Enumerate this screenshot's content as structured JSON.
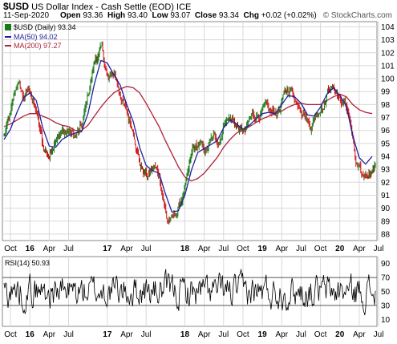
{
  "header": {
    "symbol": "$USD",
    "description": "US Dollar Index - Cash Settle (EOD)",
    "exchange": "ICE",
    "date": "11-Sep-2020",
    "open_label": "Open",
    "open": "93.36",
    "high_label": "High",
    "high": "93.40",
    "low_label": "Low",
    "low": "93.07",
    "close_label": "Close",
    "close": "93.34",
    "chg_label": "Chg",
    "chg": "+0.02 (+0.02%)",
    "copyright": "© StockCharts.com"
  },
  "legend": {
    "price": "$USD (Daily) 93.34",
    "ma50": "MA(50) 94.02",
    "ma200": "MA(200) 97.27",
    "rsi": "RSI(14) 50.93"
  },
  "colors": {
    "up": "#1a7a1a",
    "down": "#cc1111",
    "ma50": "#1f1f9e",
    "ma200": "#b0203a",
    "grid": "#d8d8d8",
    "rsi_line": "#000000",
    "rsi_bands": "#555555"
  },
  "chart_data": [
    {
      "type": "line",
      "title": "$USD (Daily)",
      "chart_style": "ohlc-bars",
      "grid": true,
      "y_axis_side": "right",
      "ylim": [
        87.5,
        104.4
      ],
      "yticks": [
        "88",
        "89",
        "90",
        "91",
        "92",
        "93",
        "94",
        "95",
        "96",
        "97",
        "98",
        "99",
        "100",
        "101",
        "102",
        "103",
        "104"
      ],
      "x_labels": [
        "Oct",
        "16",
        "Apr",
        "Jul",
        "17",
        "Apr",
        "Jul",
        "18",
        "Apr",
        "Jul",
        "Oct",
        "19",
        "Apr",
        "Jul",
        "Oct",
        "20",
        "Apr",
        "Jul"
      ],
      "x_label_dates": [
        "2015-10",
        "2016-01",
        "2016-04",
        "2016-07",
        "2017-01",
        "2017-04",
        "2017-07",
        "2018-01",
        "2018-04",
        "2018-07",
        "2018-10",
        "2019-01",
        "2019-04",
        "2019-07",
        "2019-10",
        "2020-01",
        "2020-04",
        "2020-07"
      ],
      "price_path_monthly": {
        "start": "2015-09",
        "values": [
          95.6,
          97.0,
          99.6,
          98.6,
          99.1,
          97.3,
          94.6,
          94.0,
          95.9,
          95.9,
          95.9,
          95.5,
          96.2,
          98.9,
          101.5,
          102.2,
          99.8,
          100.4,
          98.6,
          97.0,
          95.8,
          93.3,
          92.4,
          93.2,
          92.2,
          89.2,
          89.1,
          90.3,
          91.8,
          94.4,
          94.8,
          94.3,
          95.3,
          95.2,
          97.1,
          96.9,
          96.2,
          95.8,
          96.9,
          97.3,
          97.6,
          97.1,
          97.4,
          98.7,
          99.2,
          98.2,
          97.8,
          96.4,
          97.4,
          98.2,
          99.5,
          99.0,
          98.1,
          97.3,
          93.3,
          92.1,
          92.8,
          93.3
        ]
      },
      "series": [
        {
          "name": "MA(50)",
          "last": 94.02,
          "values": [
            95.3,
            96.1,
            97.4,
            98.5,
            98.9,
            98.3,
            96.2,
            94.8,
            94.7,
            95.3,
            95.6,
            95.8,
            95.9,
            97.3,
            99.6,
            101.4,
            101.2,
            100.3,
            99.5,
            98.0,
            96.7,
            94.7,
            93.3,
            92.9,
            92.7,
            91.1,
            89.7,
            89.8,
            91.0,
            92.9,
            94.3,
            94.6,
            94.9,
            95.2,
            96.2,
            96.8,
            96.5,
            96.1,
            96.4,
            96.9,
            97.3,
            97.4,
            97.3,
            98.0,
            98.7,
            98.6,
            98.1,
            97.2,
            97.1,
            97.8,
            98.8,
            99.3,
            98.7,
            97.9,
            95.6,
            93.9,
            93.4,
            94.0
          ]
        },
        {
          "name": "MA(200)",
          "last": 97.27,
          "values": [
            96.3,
            96.5,
            96.8,
            97.1,
            97.3,
            97.3,
            97.1,
            96.9,
            96.6,
            96.4,
            96.3,
            96.0,
            96.0,
            96.4,
            97.1,
            97.8,
            98.4,
            98.9,
            99.2,
            99.4,
            99.3,
            98.9,
            98.1,
            97.2,
            96.3,
            95.2,
            94.2,
            93.2,
            92.4,
            92.1,
            92.3,
            92.7,
            93.3,
            93.9,
            94.7,
            95.3,
            95.8,
            96.0,
            96.3,
            96.6,
            96.9,
            97.1,
            97.3,
            97.5,
            97.8,
            98.0,
            98.1,
            98.0,
            98.0,
            98.0,
            98.3,
            98.6,
            98.8,
            98.6,
            98.0,
            97.6,
            97.4,
            97.3
          ]
        }
      ]
    },
    {
      "type": "line",
      "title": "RSI(14)",
      "ylim": [
        0,
        100
      ],
      "yticks": [
        "10",
        "30",
        "50",
        "70",
        "90"
      ],
      "bands": [
        30,
        70
      ],
      "last": 50.93,
      "x_labels": [
        "Oct",
        "16",
        "Apr",
        "Jul",
        "17",
        "Apr",
        "Jul",
        "18",
        "Apr",
        "Jul",
        "Oct",
        "19",
        "Apr",
        "Jul",
        "Oct",
        "20",
        "Apr",
        "Jul"
      ]
    }
  ]
}
